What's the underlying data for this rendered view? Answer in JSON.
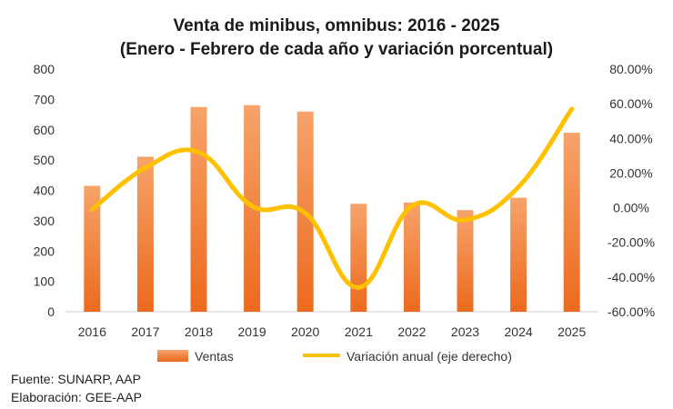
{
  "chart_data": {
    "type": "bar",
    "title": "Venta de minibus, omnibus: 2016 - 2025",
    "subtitle": "(Enero - Febrero de cada año y variación porcentual)",
    "categories": [
      "2016",
      "2017",
      "2018",
      "2019",
      "2020",
      "2021",
      "2022",
      "2023",
      "2024",
      "2025"
    ],
    "series": [
      {
        "name": "Ventas",
        "type": "bar",
        "axis": "left",
        "values": [
          415,
          511,
          675,
          681,
          660,
          356,
          360,
          335,
          376,
          590
        ]
      },
      {
        "name": "Variación anual (eje derecho)",
        "type": "line",
        "axis": "right",
        "values": [
          -0.01,
          0.23,
          0.32,
          0.01,
          -0.03,
          -0.46,
          0.01,
          -0.07,
          0.12,
          0.57
        ]
      }
    ],
    "ylim_left": [
      0,
      800
    ],
    "yticks_left": [
      "0",
      "100",
      "200",
      "300",
      "400",
      "500",
      "600",
      "700",
      "800"
    ],
    "ylim_right": [
      -0.6,
      0.8
    ],
    "yticks_right": [
      "-60.00%",
      "-40.00%",
      "-20.00%",
      "0.00%",
      "20.00%",
      "40.00%",
      "60.00%",
      "80.00%"
    ],
    "grid": false,
    "legend": "bottom",
    "colors": {
      "bar_top": "#f6a36a",
      "bar_bottom": "#ec6a1e",
      "line": "#ffc000"
    }
  },
  "footer": {
    "source": "Fuente: SUNARP, AAP",
    "elaboration": "Elaboración: GEE-AAP"
  }
}
